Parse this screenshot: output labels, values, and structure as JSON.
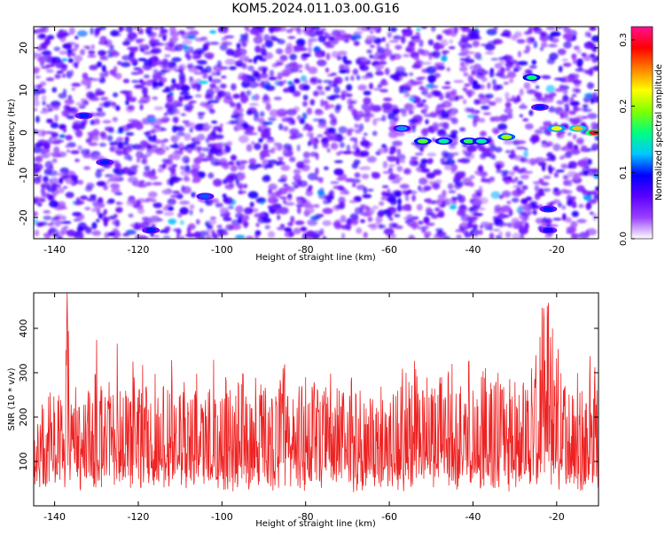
{
  "title": "KOM5.2024.011.03.00.G16",
  "chart_data": [
    {
      "type": "heatmap",
      "xlabel": "Height of straight line (km)",
      "ylabel": "Frequency (Hz)",
      "xlim": [
        -145,
        -10
      ],
      "ylim": [
        -25,
        25
      ],
      "xticks": [
        -140,
        -120,
        -100,
        -80,
        -60,
        -40,
        -20
      ],
      "yticks": [
        -20,
        -10,
        0,
        10,
        20
      ],
      "xtick_labels": [
        "-140",
        "-120",
        "-100",
        "-80",
        "-60",
        "-40",
        "-20"
      ],
      "ytick_labels": [
        "-20",
        "-10",
        "0",
        "10",
        "20"
      ],
      "colorbar": {
        "label": "Normalized spectral amplitude",
        "range": [
          0.0,
          0.32
        ],
        "ticks": [
          0.0,
          0.1,
          0.2,
          0.3
        ],
        "tick_labels": [
          "0.0",
          "0.1",
          "0.2",
          "0.3"
        ],
        "colormap": [
          "#ffffff",
          "#9a40ff",
          "#5a00ff",
          "#0000ff",
          "#00c8ff",
          "#00ff80",
          "#80ff00",
          "#ffff00",
          "#ff8000",
          "#ff0000",
          "#ff1090"
        ]
      },
      "background_level": 0.05,
      "features": [
        {
          "x": -57,
          "y": 1,
          "value": 0.12
        },
        {
          "x": -52,
          "y": -2,
          "value": 0.18
        },
        {
          "x": -47,
          "y": -2,
          "value": 0.15
        },
        {
          "x": -41,
          "y": -2,
          "value": 0.17
        },
        {
          "x": -38,
          "y": -2,
          "value": 0.15
        },
        {
          "x": -32,
          "y": -1,
          "value": 0.2
        },
        {
          "x": -26,
          "y": 13,
          "value": 0.16
        },
        {
          "x": -24,
          "y": 6,
          "value": 0.1
        },
        {
          "x": -20,
          "y": 1,
          "value": 0.22
        },
        {
          "x": -15,
          "y": 1,
          "value": 0.24
        },
        {
          "x": -11,
          "y": 0,
          "value": 0.3
        },
        {
          "x": -22,
          "y": -18,
          "value": 0.1
        },
        {
          "x": -22,
          "y": -23,
          "value": 0.09
        },
        {
          "x": -128,
          "y": -7,
          "value": 0.1
        },
        {
          "x": -133,
          "y": 4,
          "value": 0.1
        },
        {
          "x": -104,
          "y": -15,
          "value": 0.11
        },
        {
          "x": -117,
          "y": -23,
          "value": 0.1
        }
      ]
    },
    {
      "type": "line",
      "xlabel": "Height of straight line (km)",
      "ylabel": "SNR (10 * v/v)",
      "xlim": [
        -145,
        -10
      ],
      "ylim": [
        0,
        480
      ],
      "xticks": [
        -140,
        -120,
        -100,
        -80,
        -60,
        -40,
        -20
      ],
      "yticks": [
        100,
        200,
        300,
        400
      ],
      "xtick_labels": [
        "-140",
        "-120",
        "-100",
        "-80",
        "-60",
        "-40",
        "-20"
      ],
      "ytick_labels": [
        "100",
        "200",
        "300",
        "400"
      ],
      "color": "#ee2222",
      "series": [
        {
          "x": [
            -145,
            -144,
            -143,
            -142,
            -141,
            -140,
            -139,
            -138,
            -137,
            -136,
            -135,
            -134,
            -133,
            -132,
            -131,
            -130,
            -129,
            -128,
            -127,
            -126,
            -125,
            -124,
            -123,
            -122,
            -121,
            -120,
            -119,
            -118,
            -117,
            -116,
            -115,
            -114,
            -113,
            -112,
            -111,
            -110,
            -109,
            -108,
            -107,
            -106,
            -105,
            -104,
            -103,
            -102,
            -101,
            -100,
            -99,
            -98,
            -97,
            -96,
            -95,
            -94,
            -93,
            -92,
            -91,
            -90,
            -89,
            -88,
            -87,
            -86,
            -85,
            -84,
            -83,
            -82,
            -81,
            -80,
            -79,
            -78,
            -77,
            -76,
            -75,
            -74,
            -73,
            -72,
            -71,
            -70,
            -69,
            -68,
            -67,
            -66,
            -65,
            -64,
            -63,
            -62,
            -61,
            -60,
            -59,
            -58,
            -57,
            -56,
            -55,
            -54,
            -53,
            -52,
            -51,
            -50,
            -49,
            -48,
            -47,
            -46,
            -45,
            -44,
            -43,
            -42,
            -41,
            -40,
            -39,
            -38,
            -37,
            -36,
            -35,
            -34,
            -33,
            -32,
            -31,
            -30,
            -29,
            -28,
            -27,
            -26,
            -25,
            -24,
            -23,
            -22,
            -21,
            -20,
            -19,
            -18,
            -17,
            -16,
            -15,
            -14,
            -13,
            -12,
            -11,
            -10
          ],
          "y": [
            300,
            180,
            230,
            160,
            260,
            210,
            250,
            150,
            480,
            220,
            270,
            180,
            230,
            260,
            200,
            380,
            240,
            190,
            280,
            250,
            370,
            200,
            260,
            230,
            290,
            210,
            320,
            250,
            230,
            300,
            200,
            270,
            260,
            330,
            220,
            250,
            280,
            210,
            240,
            300,
            230,
            210,
            260,
            330,
            200,
            240,
            280,
            260,
            210,
            270,
            300,
            230,
            220,
            290,
            250,
            260,
            210,
            240,
            230,
            270,
            320,
            200,
            240,
            220,
            260,
            290,
            230,
            280,
            210,
            250,
            230,
            300,
            220,
            260,
            240,
            210,
            290,
            250,
            260,
            230,
            200,
            240,
            220,
            270,
            210,
            200,
            230,
            260,
            250,
            300,
            240,
            330,
            210,
            260,
            290,
            250,
            230,
            270,
            240,
            290,
            320,
            250,
            270,
            230,
            330,
            260,
            240,
            290,
            310,
            250,
            270,
            300,
            260,
            230,
            240,
            280,
            250,
            270,
            260,
            310,
            290,
            380,
            420,
            460,
            400,
            330,
            300,
            270,
            250,
            240,
            300,
            260,
            230,
            340,
            270,
            370
          ]
        }
      ]
    }
  ]
}
